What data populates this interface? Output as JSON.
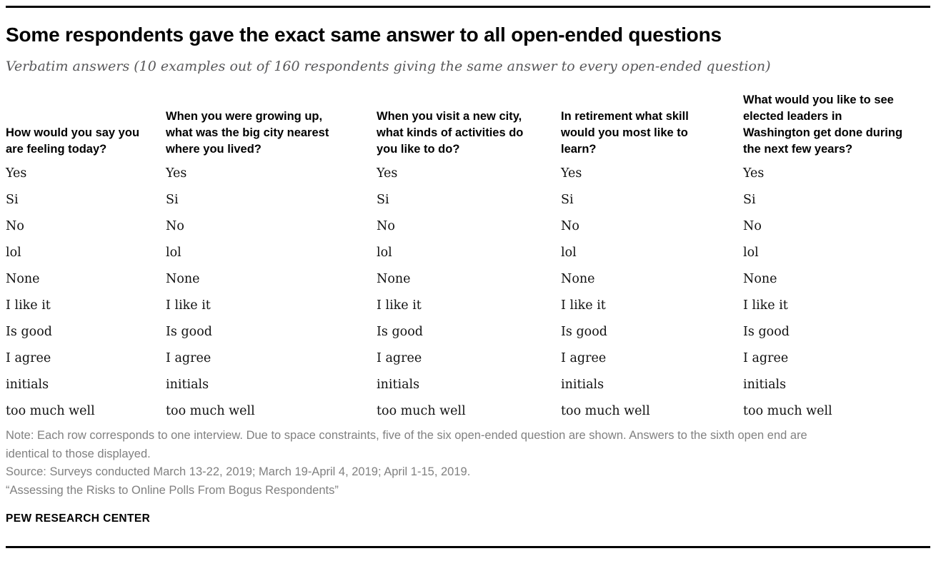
{
  "header": {
    "title": "Some respondents gave the exact same answer to all open-ended questions",
    "subtitle": "Verbatim answers (10 examples out of 160 respondents giving the same answer to every open-ended question)"
  },
  "chart_data": {
    "type": "table",
    "title": "Some respondents gave the exact same answer to all open-ended questions",
    "subtitle": "Verbatim answers (10 examples out of 160 respondents giving the same answer to every open-ended question)",
    "columns": [
      "How would you say you\nare feeling today?",
      "When you were growing up,\nwhat was the big city nearest\nwhere you lived?",
      "When you visit a new city,\nwhat kinds of activities do\nyou like to do?",
      "In retirement what skill\nwould you most like to\nlearn?",
      "What would you like to see\nelected leaders in\nWashington get done during\nthe next few years?"
    ],
    "rows": [
      [
        "Yes",
        "Yes",
        "Yes",
        "Yes",
        "Yes"
      ],
      [
        "Si",
        "Si",
        "Si",
        "Si",
        "Si"
      ],
      [
        "No",
        "No",
        "No",
        "No",
        "No"
      ],
      [
        "lol",
        "lol",
        "lol",
        "lol",
        "lol"
      ],
      [
        "None",
        "None",
        "None",
        "None",
        "None"
      ],
      [
        "I like it",
        "I like it",
        "I like it",
        "I like it",
        "I like it"
      ],
      [
        "Is good",
        "Is good",
        "Is good",
        "Is good",
        "Is good"
      ],
      [
        "I agree",
        "I agree",
        "I agree",
        "I agree",
        "I agree"
      ],
      [
        "initials",
        "initials",
        "initials",
        "initials",
        "initials"
      ],
      [
        "too much well",
        "too much well",
        "too much well",
        "too much well",
        "too much well"
      ]
    ],
    "layout_hints": {
      "grid": "off",
      "header_alignment": "bottom"
    }
  },
  "footer": {
    "note": "Note: Each row corresponds to one interview. Due to space constraints, five of the six open-ended question are shown. Answers to the sixth open end are identical to those displayed.",
    "source": "Source: Surveys conducted March 13-22, 2019; March 19-April 4, 2019; April 1-15, 2019.",
    "citation": "“Assessing the Risks to Online Polls From Bogus Respondents”",
    "brand": "PEW RESEARCH CENTER"
  },
  "colors": {
    "rule": "#000000",
    "title_text": "#000000",
    "subtitle_text": "#58585a",
    "body_text": "#111111",
    "note_text": "#818181",
    "background": "#ffffff"
  }
}
